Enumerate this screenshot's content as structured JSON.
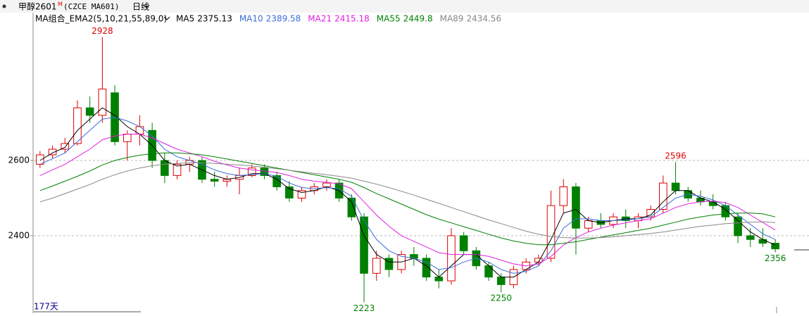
{
  "header": {
    "symbol": "甲醇2601",
    "badge": "M",
    "code": "(CZCE MA601)",
    "period": "日线",
    "indicator": "MA组合_EMA2(5,10,21,55,89,0)",
    "days": "177天"
  },
  "chart_data": {
    "type": "candlestick",
    "up_color": "#e00000",
    "down_color": "#008000",
    "ylim": [
      2194,
      2993
    ],
    "yticks": [
      2400,
      2600
    ],
    "grid": true,
    "candles": [
      [
        2590,
        2625,
        2580,
        2615
      ],
      [
        2615,
        2640,
        2605,
        2630
      ],
      [
        2630,
        2660,
        2620,
        2645
      ],
      [
        2645,
        2760,
        2640,
        2740
      ],
      [
        2740,
        2770,
        2700,
        2720
      ],
      [
        2720,
        2928,
        2700,
        2790
      ],
      [
        2780,
        2800,
        2640,
        2650
      ],
      [
        2650,
        2680,
        2600,
        2670
      ],
      [
        2670,
        2720,
        2640,
        2690
      ],
      [
        2680,
        2700,
        2580,
        2600
      ],
      [
        2600,
        2620,
        2540,
        2560
      ],
      [
        2560,
        2600,
        2550,
        2590
      ],
      [
        2590,
        2610,
        2570,
        2600
      ],
      [
        2600,
        2610,
        2540,
        2550
      ],
      [
        2550,
        2570,
        2530,
        2545
      ],
      [
        2545,
        2560,
        2530,
        2550
      ],
      [
        2550,
        2580,
        2510,
        2560
      ],
      [
        2560,
        2590,
        2555,
        2580
      ],
      [
        2580,
        2590,
        2550,
        2560
      ],
      [
        2560,
        2570,
        2520,
        2530
      ],
      [
        2530,
        2545,
        2490,
        2500
      ],
      [
        2500,
        2530,
        2490,
        2520
      ],
      [
        2520,
        2540,
        2510,
        2530
      ],
      [
        2530,
        2550,
        2520,
        2540
      ],
      [
        2540,
        2550,
        2490,
        2500
      ],
      [
        2500,
        2510,
        2440,
        2450
      ],
      [
        2450,
        2460,
        2223,
        2300
      ],
      [
        2300,
        2360,
        2280,
        2340
      ],
      [
        2340,
        2350,
        2290,
        2310
      ],
      [
        2310,
        2360,
        2300,
        2350
      ],
      [
        2350,
        2370,
        2320,
        2340
      ],
      [
        2340,
        2350,
        2280,
        2290
      ],
      [
        2290,
        2310,
        2260,
        2280
      ],
      [
        2280,
        2420,
        2270,
        2400
      ],
      [
        2400,
        2410,
        2350,
        2360
      ],
      [
        2360,
        2370,
        2310,
        2320
      ],
      [
        2320,
        2330,
        2280,
        2290
      ],
      [
        2290,
        2300,
        2250,
        2270
      ],
      [
        2270,
        2320,
        2260,
        2310
      ],
      [
        2310,
        2340,
        2300,
        2330
      ],
      [
        2330,
        2350,
        2320,
        2340
      ],
      [
        2340,
        2520,
        2330,
        2480
      ],
      [
        2480,
        2550,
        2460,
        2530
      ],
      [
        2530,
        2540,
        2350,
        2420
      ],
      [
        2420,
        2450,
        2410,
        2440
      ],
      [
        2440,
        2460,
        2420,
        2430
      ],
      [
        2430,
        2460,
        2420,
        2450
      ],
      [
        2450,
        2470,
        2420,
        2440
      ],
      [
        2440,
        2460,
        2420,
        2450
      ],
      [
        2450,
        2480,
        2440,
        2470
      ],
      [
        2470,
        2560,
        2460,
        2540
      ],
      [
        2540,
        2596,
        2510,
        2520
      ],
      [
        2520,
        2530,
        2490,
        2500
      ],
      [
        2500,
        2520,
        2480,
        2490
      ],
      [
        2490,
        2510,
        2470,
        2480
      ],
      [
        2480,
        2490,
        2440,
        2450
      ],
      [
        2450,
        2460,
        2380,
        2400
      ],
      [
        2400,
        2420,
        2370,
        2390
      ],
      [
        2390,
        2420,
        2370,
        2380
      ],
      [
        2380,
        2390,
        2356,
        2365
      ]
    ],
    "marked_highs": [
      5,
      51
    ],
    "marked_lows": [
      26,
      37,
      59
    ],
    "series": [
      {
        "name": "MA5",
        "last": 2375.13,
        "color": "#000000",
        "values": [
          2600,
          2620,
          2635,
          2680,
          2710,
          2740,
          2720,
          2690,
          2670,
          2640,
          2600,
          2585,
          2590,
          2575,
          2560,
          2550,
          2555,
          2565,
          2565,
          2550,
          2525,
          2515,
          2520,
          2530,
          2520,
          2490,
          2400,
          2350,
          2330,
          2330,
          2340,
          2320,
          2290,
          2320,
          2350,
          2350,
          2320,
          2290,
          2290,
          2310,
          2330,
          2390,
          2460,
          2470,
          2440,
          2435,
          2440,
          2445,
          2445,
          2455,
          2490,
          2520,
          2520,
          2500,
          2490,
          2470,
          2440,
          2410,
          2390,
          2375
        ]
      },
      {
        "name": "MA10",
        "last": 2389.58,
        "color": "#3a6ed8",
        "values": [
          2590,
          2605,
          2620,
          2650,
          2680,
          2710,
          2715,
          2705,
          2690,
          2665,
          2630,
          2610,
          2600,
          2590,
          2575,
          2565,
          2560,
          2562,
          2565,
          2558,
          2540,
          2528,
          2525,
          2528,
          2525,
          2505,
          2440,
          2390,
          2360,
          2345,
          2340,
          2330,
          2310,
          2315,
          2330,
          2340,
          2330,
          2310,
          2300,
          2305,
          2320,
          2360,
          2420,
          2445,
          2445,
          2440,
          2440,
          2442,
          2445,
          2450,
          2475,
          2500,
          2510,
          2505,
          2495,
          2480,
          2455,
          2430,
          2405,
          2390
        ]
      },
      {
        "name": "MA21",
        "last": 2415.18,
        "color": "#e020e0",
        "values": [
          2560,
          2575,
          2590,
          2610,
          2630,
          2655,
          2665,
          2670,
          2670,
          2660,
          2645,
          2630,
          2620,
          2610,
          2598,
          2588,
          2580,
          2575,
          2572,
          2568,
          2560,
          2550,
          2545,
          2542,
          2538,
          2525,
          2490,
          2455,
          2425,
          2400,
          2385,
          2370,
          2355,
          2350,
          2350,
          2350,
          2345,
          2335,
          2325,
          2320,
          2325,
          2345,
          2375,
          2395,
          2410,
          2420,
          2428,
          2434,
          2440,
          2445,
          2460,
          2475,
          2485,
          2490,
          2492,
          2488,
          2475,
          2455,
          2435,
          2415
        ]
      },
      {
        "name": "MA55",
        "last": 2449.8,
        "color": "#008000",
        "values": [
          2520,
          2532,
          2545,
          2558,
          2572,
          2588,
          2600,
          2608,
          2614,
          2618,
          2620,
          2620,
          2618,
          2615,
          2610,
          2604,
          2598,
          2592,
          2586,
          2580,
          2574,
          2568,
          2562,
          2556,
          2550,
          2542,
          2528,
          2512,
          2498,
          2484,
          2470,
          2456,
          2444,
          2434,
          2424,
          2414,
          2404,
          2394,
          2386,
          2380,
          2376,
          2376,
          2380,
          2384,
          2390,
          2396,
          2402,
          2408,
          2414,
          2420,
          2428,
          2436,
          2444,
          2450,
          2455,
          2458,
          2460,
          2460,
          2458,
          2450
        ]
      },
      {
        "name": "MA89",
        "last": 2434.56,
        "color": "#888888",
        "values": [
          2490,
          2500,
          2512,
          2524,
          2536,
          2550,
          2562,
          2572,
          2580,
          2586,
          2590,
          2592,
          2594,
          2594,
          2592,
          2590,
          2588,
          2585,
          2582,
          2578,
          2574,
          2570,
          2566,
          2562,
          2558,
          2553,
          2545,
          2537,
          2528,
          2518,
          2508,
          2497,
          2486,
          2475,
          2464,
          2453,
          2442,
          2432,
          2422,
          2412,
          2404,
          2398,
          2395,
          2394,
          2394,
          2395,
          2397,
          2400,
          2403,
          2406,
          2410,
          2415,
          2420,
          2425,
          2428,
          2432,
          2434,
          2436,
          2437,
          2435
        ]
      }
    ]
  }
}
